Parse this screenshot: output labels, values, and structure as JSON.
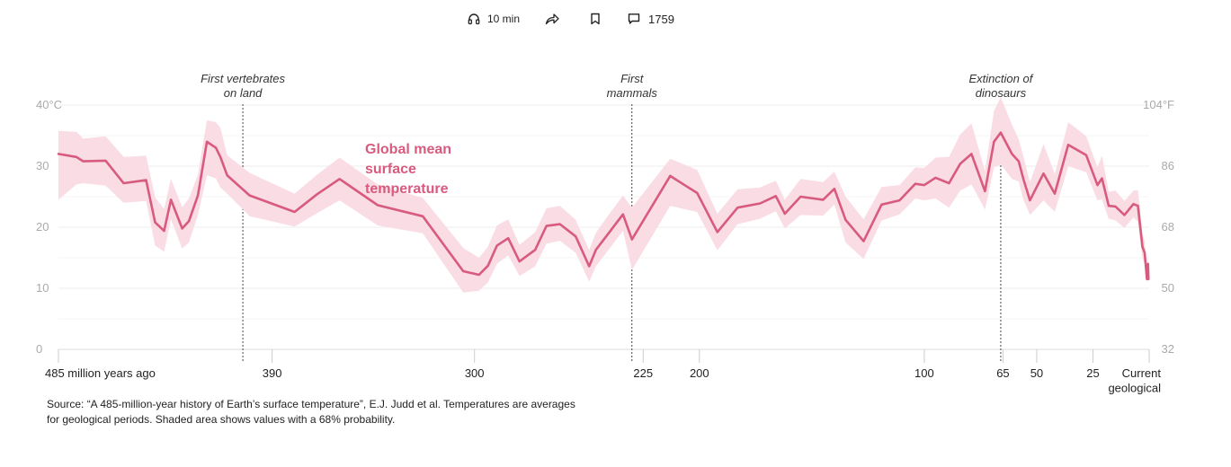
{
  "toolbar": {
    "listen_label": "10 min",
    "comment_count": "1759",
    "icons": [
      "headphones-icon",
      "share-icon",
      "bookmark-icon",
      "comment-icon"
    ]
  },
  "source_note": "Source: “A 485-million-year history of Earth’s surface temperature”, E.J. Judd et al. Temperatures are averages for geological periods. Shaded area shows values with a 68% probability.",
  "colors": {
    "line": "#d85a7f",
    "band": "#f9dce4",
    "grid": "#ececec",
    "axis_text": "#aaaaaa",
    "tick_text": "#222222"
  },
  "chart_data": {
    "type": "line",
    "series_label": "Global mean surface temperature",
    "x_unit": "million years ago",
    "xlim": [
      485,
      0
    ],
    "ylim": [
      0,
      40
    ],
    "y_ticks_c": [
      "40°C",
      "30",
      "20",
      "10",
      "0"
    ],
    "y_ticks_f": [
      "104°F",
      "86",
      "68",
      "50",
      "32"
    ],
    "x_ticks": [
      {
        "x": 485,
        "label": "485 million years ago"
      },
      {
        "x": 390,
        "label": "390"
      },
      {
        "x": 300,
        "label": "300"
      },
      {
        "x": 225,
        "label": "225"
      },
      {
        "x": 200,
        "label": "200"
      },
      {
        "x": 100,
        "label": "100"
      },
      {
        "x": 65,
        "label": "65"
      },
      {
        "x": 50,
        "label": "50"
      },
      {
        "x": 25,
        "label": "25"
      },
      {
        "x": 0,
        "label": "Current geological stage"
      }
    ],
    "annotations": [
      {
        "x": 403,
        "label": "First vertebrates on land"
      },
      {
        "x": 230,
        "label": "First mammals"
      },
      {
        "x": 66,
        "label": "Extinction of dinosaurs"
      }
    ],
    "grid": true,
    "x": [
      485,
      477,
      474,
      464,
      456,
      446,
      442,
      438,
      435,
      430,
      427,
      423,
      419,
      415,
      413,
      410,
      400,
      380,
      370,
      360,
      343,
      323,
      305,
      298,
      294,
      290,
      285,
      280,
      273,
      268,
      262,
      255,
      249,
      246,
      240,
      234,
      230,
      213,
      201,
      192,
      183,
      173,
      166,
      162,
      155,
      145,
      140,
      135,
      127,
      119,
      111,
      104,
      100,
      95,
      89,
      84,
      79,
      73,
      69,
      66,
      61,
      58,
      56,
      53,
      47,
      42,
      36,
      28,
      23,
      21,
      18,
      15,
      11,
      7,
      5,
      3,
      2,
      1,
      0.5,
      0.3
    ],
    "values": [
      32,
      31.5,
      30.8,
      30.9,
      27.2,
      27.7,
      20.8,
      19.4,
      24.5,
      19.8,
      21,
      25.2,
      34,
      33,
      31.5,
      28.5,
      25.2,
      22.5,
      25.4,
      27.9,
      23.6,
      21.8,
      12.8,
      12.2,
      13.7,
      17,
      18.2,
      14.4,
      16.3,
      20.2,
      20.5,
      18.5,
      13.6,
      16.3,
      19.2,
      22.1,
      18,
      28.4,
      25.6,
      19.2,
      23.2,
      23.9,
      25.1,
      22.2,
      25,
      24.5,
      26.3,
      21.2,
      17.7,
      23.7,
      24.4,
      27.1,
      26.9,
      28.1,
      27.2,
      30.4,
      32,
      25.9,
      34,
      35.5,
      32,
      30.8,
      28,
      24.4,
      28.8,
      25.5,
      33.5,
      31.8,
      26.9,
      28,
      23.5,
      23.4,
      22,
      23.8,
      23.5,
      16.8,
      15.8,
      11.5,
      14,
      11.5
    ],
    "band_low": [
      24.5,
      27,
      27.2,
      26.8,
      24,
      24.3,
      17,
      16,
      21.3,
      16.5,
      17.5,
      22,
      28.5,
      28,
      26.5,
      25.5,
      21.8,
      20.1,
      22.3,
      24.4,
      20.3,
      19,
      9.3,
      9.6,
      11,
      14,
      15.4,
      12,
      13.6,
      17.3,
      17.8,
      15.8,
      11.1,
      13.6,
      16.5,
      19.4,
      13,
      23.5,
      22.5,
      16.2,
      20.5,
      21.4,
      22.6,
      19.8,
      22,
      21.9,
      23.7,
      17.5,
      14.8,
      21.1,
      22.1,
      24.7,
      24.4,
      24.7,
      23.2,
      26,
      27,
      22.9,
      29.8,
      30.3,
      27.9,
      27.5,
      24.6,
      22,
      24.4,
      22.5,
      30,
      29,
      24.4,
      24.6,
      21.4,
      21.1,
      19.9,
      21.6,
      20.9,
      15,
      14,
      10.8,
      12.3,
      11
    ],
    "band_high": [
      35.8,
      35.6,
      34.5,
      34.9,
      31.5,
      31.7,
      24.9,
      23,
      27.9,
      23.3,
      24.7,
      28.6,
      37.5,
      37.2,
      36.3,
      31.8,
      28.9,
      25.5,
      28.6,
      31.4,
      27,
      24.8,
      16.6,
      15,
      16.8,
      20.3,
      21.3,
      17.1,
      19.2,
      23.1,
      23.5,
      21.2,
      16.3,
      19.1,
      22.2,
      25.2,
      23.2,
      31.2,
      29.4,
      22.2,
      26.2,
      26.5,
      27.6,
      24.5,
      27.9,
      27.4,
      29.1,
      25,
      21.3,
      26.6,
      26.9,
      29.8,
      29.7,
      31.4,
      31.5,
      35.2,
      37,
      29.2,
      39,
      41.3,
      36.8,
      34.4,
      31.7,
      27.4,
      33.6,
      28.7,
      37.2,
      34.9,
      29.8,
      31.7,
      25.8,
      26,
      24.3,
      26,
      26.1,
      18.9,
      17.7,
      12.4,
      15.4,
      11.9
    ]
  }
}
